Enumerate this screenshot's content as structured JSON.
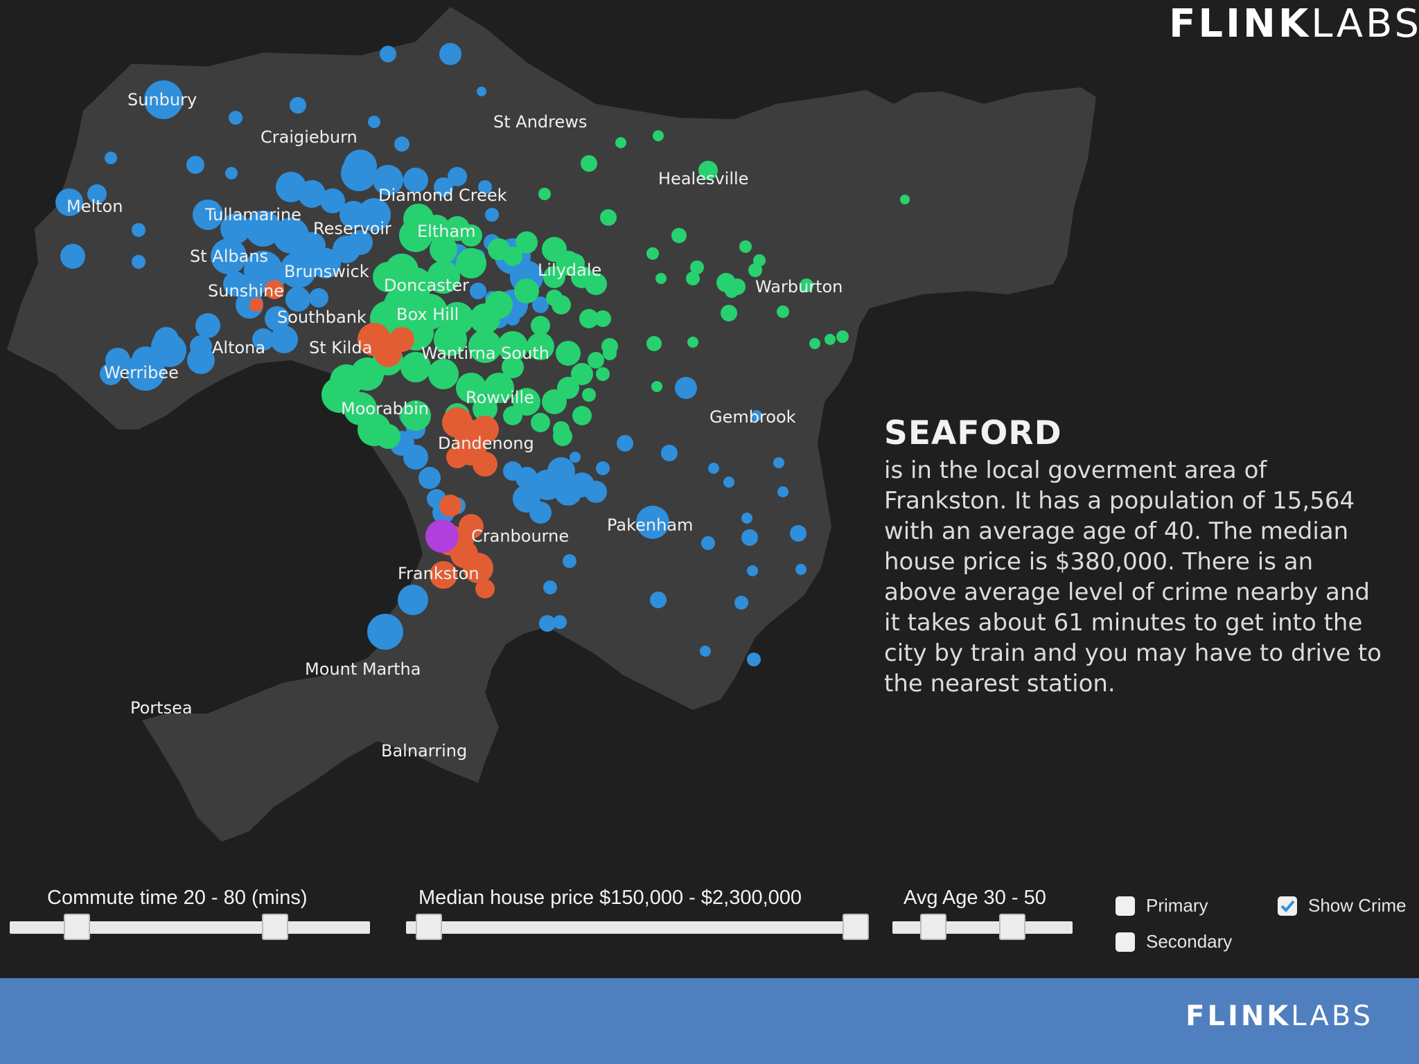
{
  "brand": {
    "bold": "FLINK",
    "light": "LABS"
  },
  "colors": {
    "background": "#1f1f1f",
    "land": "#3d3d3e",
    "blue": "#2f8fdb",
    "green": "#27d170",
    "orange": "#e35d34",
    "purple": "#b03fdc",
    "footer": "#4f7fbf"
  },
  "map": {
    "places": [
      "Sunbury",
      "Craigieburn",
      "St Andrews",
      "Healesville",
      "Melton",
      "Diamond Creek",
      "Tullamarine",
      "Reservoir",
      "Eltham",
      "St Albans",
      "Brunswick",
      "Lilydale",
      "Sunshine",
      "Doncaster",
      "Warburton",
      "Southbank",
      "Box Hill",
      "Altona",
      "St Kilda",
      "Wantirna South",
      "Werribee",
      "Rowville",
      "Moorabbin",
      "Gembrook",
      "Dandenong",
      "Cranbourne",
      "Pakenham",
      "Frankston",
      "Mount Martha",
      "Portsea",
      "Balnarring"
    ],
    "selected_suburb": "Seaford"
  },
  "info": {
    "title": "SEAFORD",
    "text": "is in the local goverment area of Frankston. It has a population of 15,564 with an average age of 40. The median house price is $380,000. There is an above average level of crime nearby and it takes about 61 minutes to get into the city by train and you may have to drive to the nearest station."
  },
  "controls": {
    "commute": {
      "label": "Commute time 20 - 80 (mins)",
      "min_value": 20,
      "max_value": 80
    },
    "price": {
      "label": "Median house price $150,000 - $2,300,000",
      "min_value": 150000,
      "max_value": 2300000
    },
    "age": {
      "label": "Avg Age 30 - 50",
      "min_value": 30,
      "max_value": 50
    },
    "primary": {
      "label": "Primary",
      "checked": false
    },
    "secondary": {
      "label": "Secondary",
      "checked": false
    },
    "show_crime": {
      "label": "Show Crime",
      "checked": true
    }
  }
}
